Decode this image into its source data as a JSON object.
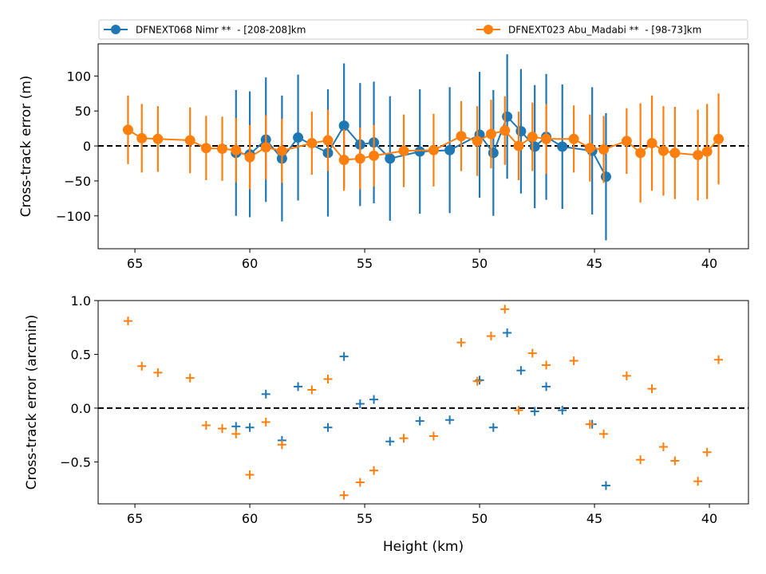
{
  "colors": {
    "blue": "#1f77b4",
    "orange": "#ff7f0e",
    "zero_line": "#000000"
  },
  "legend": {
    "entries": [
      {
        "label": "DFNEXT068 Nimr **  - [208-208]km",
        "color": "#1f77b4"
      },
      {
        "label": "DFNEXT023 Abu_Madabi **  - [98-73]km",
        "color": "#ff7f0e"
      }
    ]
  },
  "chart_data": [
    {
      "type": "line",
      "xlabel": "",
      "ylabel": "Cross-track error (m)",
      "xlim": [
        66.6,
        38.3
      ],
      "ylim": [
        -147,
        146
      ],
      "xticks": [
        65,
        60,
        55,
        50,
        45,
        40
      ],
      "yticks": [
        -100,
        -50,
        0,
        50,
        100
      ],
      "zero_line": true,
      "error_bars": true,
      "series": [
        {
          "name": "DFNEXT068 Nimr **  - [208-208]km",
          "color": "#1f77b4",
          "x": [
            60.6,
            60.0,
            59.3,
            58.6,
            57.9,
            56.6,
            55.9,
            55.2,
            54.6,
            53.9,
            52.6,
            51.3,
            50.0,
            49.4,
            48.8,
            48.2,
            47.6,
            47.1,
            46.4,
            45.1,
            44.5
          ],
          "y": [
            -10,
            -12,
            9,
            -18,
            12,
            -10,
            29,
            2,
            5,
            -18,
            -8,
            -6,
            16,
            -10,
            42,
            21,
            -1,
            13,
            -1,
            -7,
            -44
          ],
          "err": [
            90,
            90,
            89,
            90,
            90,
            91,
            89,
            88,
            87,
            89,
            89,
            90,
            90,
            90,
            89,
            89,
            88,
            90,
            89,
            91,
            91
          ]
        },
        {
          "name": "DFNEXT023 Abu_Madabi **  - [98-73]km",
          "color": "#ff7f0e",
          "x": [
            65.3,
            64.7,
            64.0,
            62.6,
            61.9,
            61.2,
            60.6,
            60.0,
            59.3,
            58.6,
            57.3,
            56.6,
            55.9,
            55.2,
            54.6,
            53.3,
            52.0,
            50.8,
            50.1,
            49.5,
            48.9,
            48.3,
            47.7,
            47.1,
            45.9,
            45.2,
            44.6,
            43.6,
            43.0,
            42.5,
            42.0,
            41.5,
            40.5,
            40.1,
            39.6
          ],
          "y": [
            23,
            11,
            10,
            8,
            -3,
            -4,
            -6,
            -16,
            -2,
            -7,
            4,
            8,
            -20,
            -18,
            -14,
            -7,
            -6,
            14,
            7,
            17,
            22,
            0,
            13,
            10,
            10,
            -3,
            -5,
            7,
            -10,
            4,
            -7,
            -10,
            -13,
            -8,
            10
          ],
          "err": [
            49,
            49,
            47,
            47,
            46,
            46,
            46,
            46,
            46,
            46,
            45,
            44,
            44,
            44,
            44,
            52,
            52,
            50,
            50,
            49,
            49,
            49,
            49,
            50,
            48,
            48,
            48,
            47,
            71,
            68,
            64,
            66,
            65,
            68,
            65
          ]
        }
      ]
    },
    {
      "type": "scatter",
      "xlabel": "Height (km)",
      "ylabel": "Cross-track error (arcmin)",
      "xlim": [
        66.6,
        38.3
      ],
      "ylim": [
        -0.89,
        1.0
      ],
      "xticks": [
        65,
        60,
        55,
        50,
        45,
        40
      ],
      "yticks": [
        -0.5,
        0.0,
        0.5,
        1.0
      ],
      "zero_line": true,
      "marker": "plus",
      "series": [
        {
          "name": "DFNEXT068 Nimr **  - [208-208]km",
          "color": "#1f77b4",
          "x": [
            60.6,
            60.0,
            59.3,
            58.6,
            57.9,
            56.6,
            55.9,
            55.2,
            54.6,
            53.9,
            52.6,
            51.3,
            50.0,
            49.4,
            48.8,
            48.2,
            47.6,
            47.1,
            46.4,
            45.1,
            44.5
          ],
          "y": [
            -0.17,
            -0.18,
            0.13,
            -0.3,
            0.2,
            -0.18,
            0.48,
            0.04,
            0.08,
            -0.31,
            -0.12,
            -0.11,
            0.26,
            -0.18,
            0.7,
            0.35,
            -0.03,
            0.2,
            -0.02,
            -0.15,
            -0.72
          ]
        },
        {
          "name": "DFNEXT023 Abu_Madabi **  - [98-73]km",
          "color": "#ff7f0e",
          "x": [
            65.3,
            64.7,
            64.0,
            62.6,
            61.9,
            61.2,
            60.6,
            60.0,
            59.3,
            58.6,
            57.3,
            56.6,
            55.9,
            55.2,
            54.6,
            53.3,
            52.0,
            50.8,
            50.1,
            49.5,
            48.9,
            48.3,
            47.7,
            47.1,
            45.9,
            45.2,
            44.6,
            43.6,
            43.0,
            42.5,
            42.0,
            41.5,
            40.5,
            40.1,
            39.6
          ],
          "y": [
            0.81,
            0.39,
            0.33,
            0.28,
            -0.16,
            -0.19,
            -0.24,
            -0.62,
            -0.13,
            -0.34,
            0.17,
            0.27,
            -0.81,
            -0.69,
            -0.58,
            -0.28,
            -0.26,
            0.61,
            0.25,
            0.67,
            0.92,
            -0.02,
            0.51,
            0.4,
            0.44,
            -0.15,
            -0.24,
            0.3,
            -0.48,
            0.18,
            -0.36,
            -0.49,
            -0.68,
            -0.41,
            0.45
          ]
        }
      ]
    }
  ]
}
